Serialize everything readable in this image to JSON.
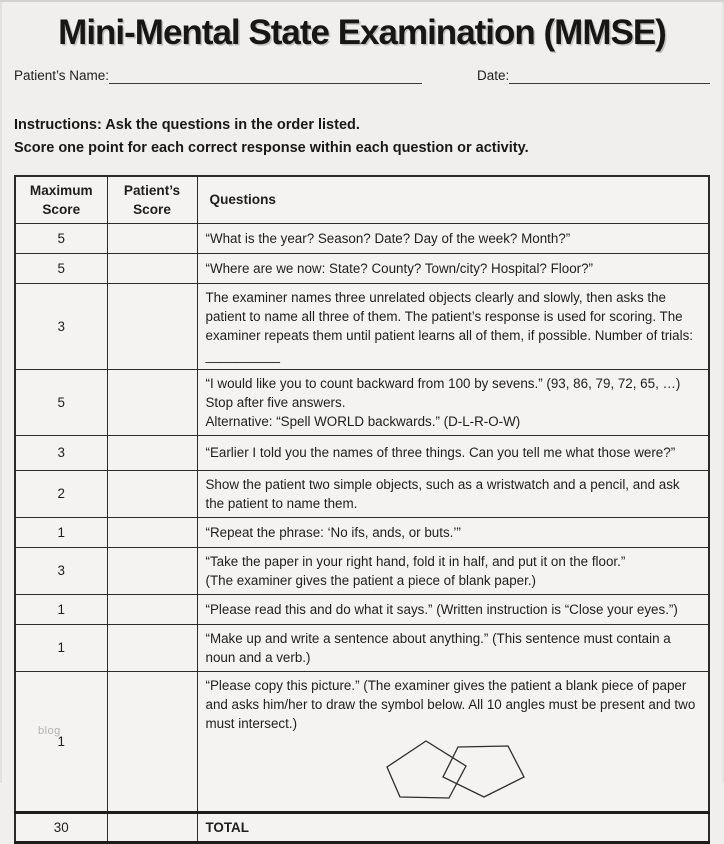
{
  "header": {
    "title": "Mini-Mental State Examination (MMSE)",
    "patient_name_label": "Patient’s Name:",
    "date_label": "Date:"
  },
  "instructions": {
    "line1": "Instructions: Ask the questions in the order listed.",
    "line2": "Score one point for each correct response within each question or activity."
  },
  "table": {
    "headers": {
      "max": "Maximum Score",
      "patient": "Patient’s Score",
      "questions": "Questions"
    },
    "rows": [
      {
        "max": "5",
        "score": "",
        "text": "“What is the year? Season? Date? Day of the week? Month?”"
      },
      {
        "max": "5",
        "score": "",
        "text": "“Where are we now: State? County? Town/city? Hospital? Floor?”"
      },
      {
        "max": "3",
        "score": "",
        "text": "The examiner names three unrelated objects clearly and slowly, then asks the patient to name all three of them. The patient’s response is used for scoring. The examiner repeats them until patient learns all of them, if possible. Number of trials: __________"
      },
      {
        "max": "5",
        "score": "",
        "line1": "“I would like you to count backward from 100 by sevens.” (93, 86, 79, 72, 65, …) Stop after five answers.",
        "line2": "Alternative: “Spell WORLD backwards.” (D-L-R-O-W)"
      },
      {
        "max": "3",
        "score": "",
        "text": "“Earlier I told you the names of three things. Can you tell me what those were?”"
      },
      {
        "max": "2",
        "score": "",
        "text": "Show the patient two simple objects, such as a wristwatch and a pencil, and ask the patient to name them."
      },
      {
        "max": "1",
        "score": "",
        "text": "“Repeat the phrase: ‘No ifs, ands, or buts.’”"
      },
      {
        "max": "3",
        "score": "",
        "line1": "“Take the paper in your right hand, fold it in half, and put it on the floor.”",
        "line2": "(The examiner gives the patient a piece of blank paper.)"
      },
      {
        "max": "1",
        "score": "",
        "text": "“Please read this and do what it says.” (Written instruction is “Close your eyes.”)"
      },
      {
        "max": "1",
        "score": "",
        "text": "“Make up and write a sentence about anything.” (This sentence must contain a noun and a verb.)"
      },
      {
        "max": "1",
        "score": "",
        "text": "“Please copy this picture.” (The examiner gives the patient a blank piece of paper and asks him/her to draw the symbol below. All 10 angles must be present and two must intersect.)"
      }
    ],
    "total": {
      "max": "30",
      "score": "",
      "label": "TOTAL"
    }
  },
  "figure": {
    "description": "two intersecting pentagons",
    "pentagon_left": "48,6 9,32 22,62 71,63 88,31",
    "pentagon_right": "80,12 130,11 146,42 106,62 65,42"
  },
  "watermark": "blog"
}
